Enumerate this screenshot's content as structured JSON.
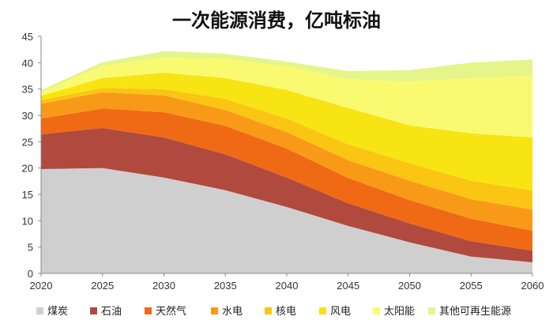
{
  "chart_data": {
    "type": "area",
    "title": "一次能源消费，亿吨标油",
    "xlabel": "",
    "ylabel": "",
    "ylim": [
      0,
      45
    ],
    "yticks": [
      0,
      5,
      10,
      15,
      20,
      25,
      30,
      35,
      40,
      45
    ],
    "x": [
      2020,
      2025,
      2030,
      2035,
      2040,
      2045,
      2050,
      2055,
      2060
    ],
    "legend_position": "bottom",
    "grid": false,
    "stacked": true,
    "series": [
      {
        "name": "煤炭",
        "color": "#d0cfcf",
        "values": [
          19.8,
          20.0,
          18.2,
          15.8,
          12.6,
          9.0,
          5.9,
          3.2,
          2.1
        ]
      },
      {
        "name": "石油",
        "color": "#b04a3e",
        "values": [
          6.6,
          7.6,
          7.6,
          6.8,
          5.6,
          4.3,
          3.6,
          2.9,
          2.2
        ]
      },
      {
        "name": "天然气",
        "color": "#f06a16",
        "values": [
          3.0,
          3.7,
          4.8,
          5.4,
          5.5,
          4.8,
          4.4,
          4.3,
          3.8
        ]
      },
      {
        "name": "水电",
        "color": "#f89a18",
        "values": [
          2.8,
          3.1,
          3.2,
          3.0,
          3.1,
          3.4,
          3.7,
          3.7,
          4.0
        ]
      },
      {
        "name": "核电",
        "color": "#fbc514",
        "values": [
          0.7,
          0.8,
          1.2,
          2.1,
          2.6,
          3.0,
          3.3,
          3.5,
          3.6
        ]
      },
      {
        "name": "风电",
        "color": "#f7e412",
        "values": [
          0.8,
          1.9,
          3.1,
          4.0,
          5.4,
          6.9,
          7.2,
          9.0,
          10.1
        ]
      },
      {
        "name": "太阳能",
        "color": "#fafa70",
        "values": [
          0.7,
          2.3,
          2.9,
          3.6,
          4.5,
          5.5,
          8.3,
          10.5,
          11.7
        ]
      },
      {
        "name": "其他可再生能源",
        "color": "#e5f58a",
        "values": [
          0.4,
          0.7,
          1.2,
          1.0,
          0.9,
          1.5,
          2.2,
          2.9,
          3.1
        ]
      }
    ]
  }
}
